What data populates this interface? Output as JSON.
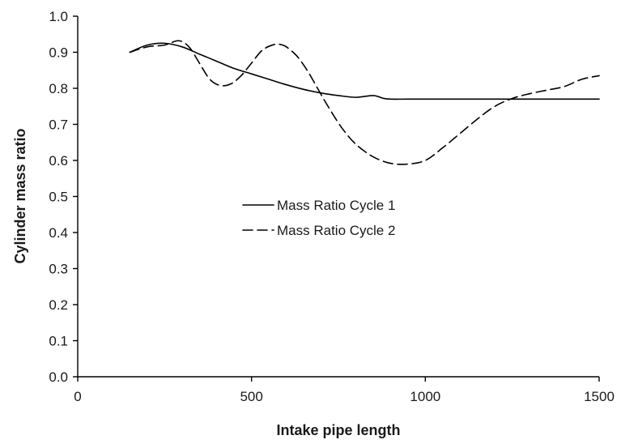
{
  "chart_data": {
    "type": "line",
    "title": "",
    "xlabel": "Intake pipe length",
    "ylabel": "Cylinder mass ratio",
    "xlim": [
      0,
      1500
    ],
    "ylim": [
      0.0,
      1.0
    ],
    "x_ticks": [
      0,
      500,
      1000,
      1500
    ],
    "y_ticks": [
      0.0,
      0.1,
      0.2,
      0.3,
      0.4,
      0.5,
      0.6,
      0.7,
      0.8,
      0.9,
      1.0
    ],
    "x_tick_labels": [
      "0",
      "500",
      "1000",
      "1500"
    ],
    "y_tick_labels": [
      "0.0",
      "0.1",
      "0.2",
      "0.3",
      "0.4",
      "0.5",
      "0.6",
      "0.7",
      "0.8",
      "0.9",
      "1.0"
    ],
    "grid": false,
    "legend_position": "center",
    "series": [
      {
        "name": "Mass Ratio Cycle 1",
        "line_style": "solid",
        "color": "#000000",
        "x": [
          150,
          200,
          250,
          300,
          350,
          400,
          450,
          500,
          550,
          600,
          650,
          700,
          750,
          800,
          850,
          880,
          900,
          950,
          1000,
          1100,
          1200,
          1300,
          1400,
          1500
        ],
        "y": [
          0.9,
          0.92,
          0.925,
          0.915,
          0.895,
          0.875,
          0.855,
          0.84,
          0.825,
          0.81,
          0.797,
          0.787,
          0.78,
          0.775,
          0.78,
          0.772,
          0.77,
          0.77,
          0.77,
          0.77,
          0.77,
          0.77,
          0.77,
          0.77
        ]
      },
      {
        "name": "Mass Ratio Cycle 2",
        "line_style": "dashed",
        "color": "#000000",
        "x": [
          150,
          200,
          250,
          290,
          320,
          350,
          380,
          410,
          440,
          470,
          500,
          530,
          560,
          580,
          600,
          630,
          660,
          690,
          720,
          760,
          800,
          850,
          900,
          950,
          1000,
          1050,
          1100,
          1150,
          1200,
          1250,
          1300,
          1350,
          1400,
          1450,
          1500
        ],
        "y": [
          0.9,
          0.915,
          0.92,
          0.932,
          0.915,
          0.87,
          0.825,
          0.808,
          0.812,
          0.835,
          0.87,
          0.905,
          0.92,
          0.922,
          0.915,
          0.89,
          0.85,
          0.8,
          0.75,
          0.69,
          0.645,
          0.61,
          0.592,
          0.59,
          0.6,
          0.635,
          0.675,
          0.715,
          0.75,
          0.772,
          0.785,
          0.795,
          0.805,
          0.825,
          0.835
        ]
      }
    ]
  }
}
